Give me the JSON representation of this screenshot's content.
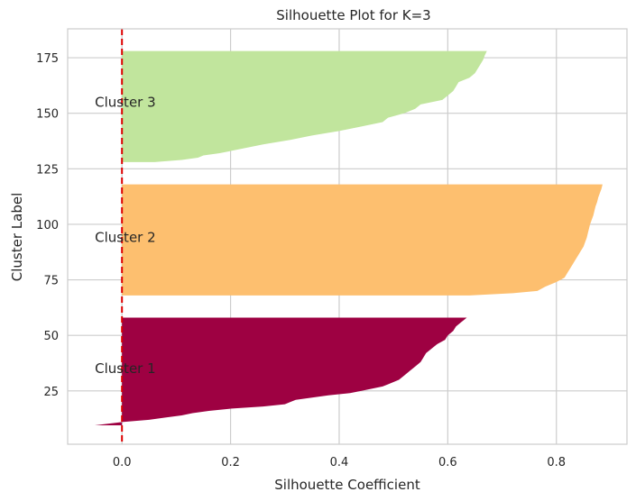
{
  "chart_data": {
    "type": "area",
    "title": "Silhouette Plot for K=3",
    "xlabel": "Silhouette Coefficient",
    "ylabel": "Cluster Label",
    "xlim": [
      -0.1,
      0.93
    ],
    "ylim": [
      1,
      188
    ],
    "xticks": [
      0.0,
      0.2,
      0.4,
      0.6,
      0.8
    ],
    "xtick_labels": [
      "0.0",
      "0.2",
      "0.4",
      "0.6",
      "0.8"
    ],
    "yticks": [
      25,
      50,
      75,
      100,
      125,
      150,
      175
    ],
    "ytick_labels": [
      "25",
      "50",
      "75",
      "100",
      "125",
      "150",
      "175"
    ],
    "grid": true,
    "reference_line": {
      "x": 0.0,
      "color": "#dd0000",
      "style": "dashed"
    },
    "series": [
      {
        "label": "Cluster 1",
        "color": "#9e0142",
        "label_y": 35,
        "points": [
          [
            9.5,
            -0.05
          ],
          [
            11,
            0.0
          ],
          [
            12,
            0.05
          ],
          [
            13,
            0.08
          ],
          [
            14,
            0.11
          ],
          [
            15,
            0.13
          ],
          [
            16,
            0.16
          ],
          [
            17,
            0.2
          ],
          [
            18,
            0.26
          ],
          [
            19,
            0.3
          ],
          [
            20,
            0.31
          ],
          [
            21,
            0.32
          ],
          [
            22,
            0.35
          ],
          [
            23,
            0.38
          ],
          [
            24,
            0.42
          ],
          [
            25,
            0.44
          ],
          [
            26,
            0.46
          ],
          [
            27,
            0.48
          ],
          [
            28,
            0.49
          ],
          [
            29,
            0.5
          ],
          [
            30,
            0.51
          ],
          [
            32,
            0.52
          ],
          [
            34,
            0.53
          ],
          [
            36,
            0.54
          ],
          [
            38,
            0.55
          ],
          [
            40,
            0.555
          ],
          [
            42,
            0.56
          ],
          [
            44,
            0.57
          ],
          [
            46,
            0.58
          ],
          [
            48,
            0.595
          ],
          [
            50,
            0.6
          ],
          [
            52,
            0.61
          ],
          [
            54,
            0.615
          ],
          [
            56,
            0.625
          ],
          [
            57,
            0.63
          ],
          [
            58,
            0.635
          ]
        ]
      },
      {
        "label": "Cluster 2",
        "color": "#fdbf6f",
        "label_y": 94,
        "points": [
          [
            68,
            0.64
          ],
          [
            69,
            0.72
          ],
          [
            70,
            0.765
          ],
          [
            72,
            0.78
          ],
          [
            74,
            0.8
          ],
          [
            76,
            0.815
          ],
          [
            78,
            0.82
          ],
          [
            80,
            0.825
          ],
          [
            82,
            0.83
          ],
          [
            84,
            0.835
          ],
          [
            86,
            0.84
          ],
          [
            88,
            0.845
          ],
          [
            90,
            0.85
          ],
          [
            92,
            0.853
          ],
          [
            94,
            0.856
          ],
          [
            96,
            0.858
          ],
          [
            98,
            0.86
          ],
          [
            100,
            0.862
          ],
          [
            102,
            0.865
          ],
          [
            104,
            0.868
          ],
          [
            106,
            0.87
          ],
          [
            108,
            0.872
          ],
          [
            110,
            0.875
          ],
          [
            112,
            0.877
          ],
          [
            114,
            0.88
          ],
          [
            116,
            0.883
          ],
          [
            118,
            0.885
          ]
        ]
      },
      {
        "label": "Cluster 3",
        "color": "#c1e59d",
        "label_y": 155,
        "points": [
          [
            128,
            0.06
          ],
          [
            129,
            0.11
          ],
          [
            130,
            0.14
          ],
          [
            131,
            0.15
          ],
          [
            132,
            0.18
          ],
          [
            134,
            0.22
          ],
          [
            136,
            0.26
          ],
          [
            138,
            0.31
          ],
          [
            140,
            0.35
          ],
          [
            142,
            0.4
          ],
          [
            144,
            0.44
          ],
          [
            146,
            0.48
          ],
          [
            148,
            0.49
          ],
          [
            150,
            0.52
          ],
          [
            152,
            0.54
          ],
          [
            154,
            0.55
          ],
          [
            156,
            0.59
          ],
          [
            158,
            0.6
          ],
          [
            160,
            0.61
          ],
          [
            162,
            0.615
          ],
          [
            164,
            0.62
          ],
          [
            166,
            0.64
          ],
          [
            168,
            0.65
          ],
          [
            170,
            0.655
          ],
          [
            172,
            0.66
          ],
          [
            174,
            0.665
          ],
          [
            176,
            0.668
          ],
          [
            178,
            0.672
          ]
        ]
      }
    ]
  }
}
